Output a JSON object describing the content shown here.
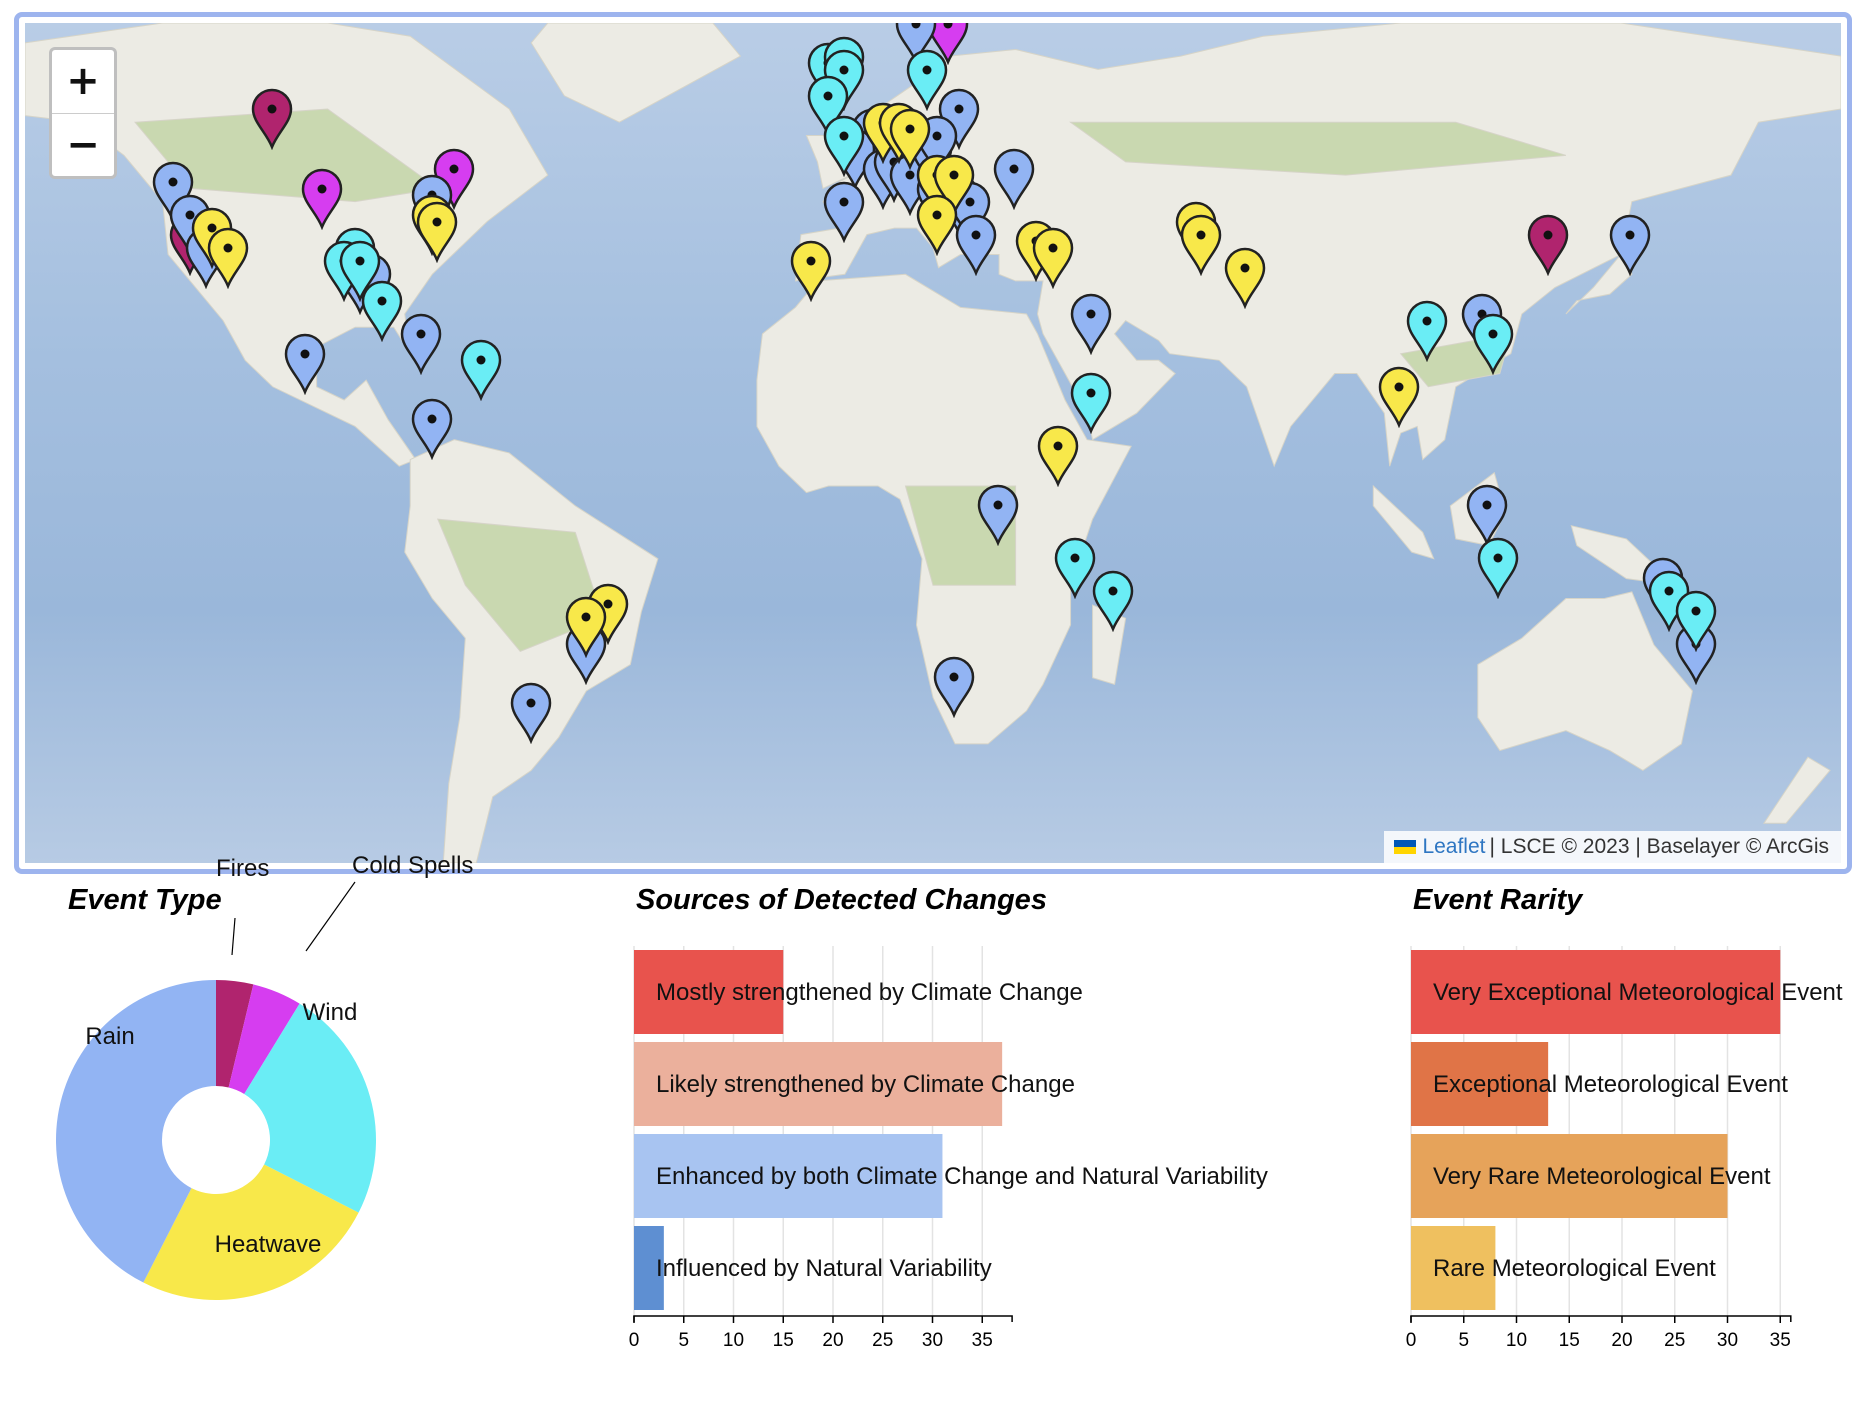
{
  "map": {
    "zoom_in": "+",
    "zoom_out": "−",
    "attribution": {
      "link": "Leaflet",
      "rest": "| LSCE © 2023 | Baselayer © ArcGis",
      "flag_colors": [
        "#0057b7",
        "#ffd500"
      ]
    },
    "colors": {
      "fires": "#b0246e",
      "cold_spells": "#d63df0",
      "wind": "#6aedf5",
      "heatwave": "#f8e84a",
      "rain": "#92b4f3",
      "land": "#ecebe4",
      "vegetation": "#c9d8b0",
      "ocean": "#a6c0e0"
    },
    "markers": [
      {
        "type": "fires",
        "lon": -105,
        "lat": 56
      },
      {
        "type": "fires",
        "lon": -120,
        "lat": 37
      },
      {
        "type": "fires",
        "lon": 127,
        "lat": 37
      },
      {
        "type": "cold_spells",
        "lon": -96,
        "lat": 44
      },
      {
        "type": "cold_spells",
        "lon": -72,
        "lat": 47
      },
      {
        "type": "cold_spells",
        "lon": 18,
        "lat": 69
      },
      {
        "type": "cold_spells",
        "lon": 12,
        "lat": 51
      },
      {
        "type": "rain",
        "lon": -123,
        "lat": 45
      },
      {
        "type": "rain",
        "lon": -120,
        "lat": 40
      },
      {
        "type": "rain",
        "lon": -117,
        "lat": 35
      },
      {
        "type": "rain",
        "lon": -89,
        "lat": 31
      },
      {
        "type": "rain",
        "lon": -87,
        "lat": 31
      },
      {
        "type": "rain",
        "lon": -76,
        "lat": 43
      },
      {
        "type": "rain",
        "lon": -99,
        "lat": 19
      },
      {
        "type": "rain",
        "lon": -78,
        "lat": 22
      },
      {
        "type": "rain",
        "lon": -76,
        "lat": 9
      },
      {
        "type": "rain",
        "lon": -48,
        "lat": -25
      },
      {
        "type": "rain",
        "lon": -58,
        "lat": -34
      },
      {
        "type": "rain",
        "lon": 12,
        "lat": 69
      },
      {
        "type": "rain",
        "lon": 20,
        "lat": 56
      },
      {
        "type": "rain",
        "lon": 4,
        "lat": 53
      },
      {
        "type": "rain",
        "lon": 1,
        "lat": 50
      },
      {
        "type": "rain",
        "lon": 6,
        "lat": 47
      },
      {
        "type": "rain",
        "lon": 8,
        "lat": 48
      },
      {
        "type": "rain",
        "lon": 11,
        "lat": 46
      },
      {
        "type": "rain",
        "lon": 15,
        "lat": 50
      },
      {
        "type": "rain",
        "lon": 16,
        "lat": 52
      },
      {
        "type": "rain",
        "lon": 16,
        "lat": 44
      },
      {
        "type": "rain",
        "lon": 18,
        "lat": 43
      },
      {
        "type": "rain",
        "lon": 20,
        "lat": 43
      },
      {
        "type": "rain",
        "lon": 22,
        "lat": 42
      },
      {
        "type": "rain",
        "lon": 23,
        "lat": 37
      },
      {
        "type": "rain",
        "lon": 30,
        "lat": 47
      },
      {
        "type": "rain",
        "lon": -1,
        "lat": 42
      },
      {
        "type": "rain",
        "lon": 44,
        "lat": 25
      },
      {
        "type": "rain",
        "lon": 27,
        "lat": -4
      },
      {
        "type": "rain",
        "lon": 19,
        "lat": -30
      },
      {
        "type": "rain",
        "lon": 115,
        "lat": 25
      },
      {
        "type": "rain",
        "lon": 116,
        "lat": -4
      },
      {
        "type": "rain",
        "lon": 142,
        "lat": 37
      },
      {
        "type": "rain",
        "lon": 148,
        "lat": -15
      },
      {
        "type": "rain",
        "lon": 154,
        "lat": -25
      },
      {
        "type": "wind",
        "lon": -90,
        "lat": 35
      },
      {
        "type": "wind",
        "lon": -92,
        "lat": 33
      },
      {
        "type": "wind",
        "lon": -89,
        "lat": 33
      },
      {
        "type": "wind",
        "lon": -85,
        "lat": 27
      },
      {
        "type": "wind",
        "lon": -67,
        "lat": 18
      },
      {
        "type": "wind",
        "lon": -4,
        "lat": 63
      },
      {
        "type": "wind",
        "lon": -1,
        "lat": 64
      },
      {
        "type": "wind",
        "lon": -1,
        "lat": 62
      },
      {
        "type": "wind",
        "lon": -4,
        "lat": 58
      },
      {
        "type": "wind",
        "lon": -1,
        "lat": 52
      },
      {
        "type": "wind",
        "lon": 14,
        "lat": 62
      },
      {
        "type": "wind",
        "lon": 44,
        "lat": 13
      },
      {
        "type": "wind",
        "lon": 41,
        "lat": -12
      },
      {
        "type": "wind",
        "lon": 48,
        "lat": -17
      },
      {
        "type": "wind",
        "lon": 105,
        "lat": 24
      },
      {
        "type": "wind",
        "lon": 117,
        "lat": 22
      },
      {
        "type": "wind",
        "lon": 118,
        "lat": -12
      },
      {
        "type": "wind",
        "lon": 149,
        "lat": -17
      },
      {
        "type": "wind",
        "lon": 154,
        "lat": -20
      },
      {
        "type": "heatwave",
        "lon": -116,
        "lat": 38
      },
      {
        "type": "heatwave",
        "lon": -113,
        "lat": 35
      },
      {
        "type": "heatwave",
        "lon": -76,
        "lat": 40
      },
      {
        "type": "heatwave",
        "lon": -75,
        "lat": 39
      },
      {
        "type": "heatwave",
        "lon": 6,
        "lat": 54
      },
      {
        "type": "heatwave",
        "lon": 9,
        "lat": 54
      },
      {
        "type": "heatwave",
        "lon": 11,
        "lat": 53
      },
      {
        "type": "heatwave",
        "lon": 16,
        "lat": 46
      },
      {
        "type": "heatwave",
        "lon": 19,
        "lat": 46
      },
      {
        "type": "heatwave",
        "lon": 16,
        "lat": 40
      },
      {
        "type": "heatwave",
        "lon": -7,
        "lat": 33
      },
      {
        "type": "heatwave",
        "lon": 34,
        "lat": 36
      },
      {
        "type": "heatwave",
        "lon": 37,
        "lat": 35
      },
      {
        "type": "heatwave",
        "lon": 63,
        "lat": 39
      },
      {
        "type": "heatwave",
        "lon": 64,
        "lat": 37
      },
      {
        "type": "heatwave",
        "lon": 72,
        "lat": 32
      },
      {
        "type": "heatwave",
        "lon": 100,
        "lat": 14
      },
      {
        "type": "heatwave",
        "lon": 38,
        "lat": 5
      },
      {
        "type": "heatwave",
        "lon": -44,
        "lat": -19
      },
      {
        "type": "heatwave",
        "lon": -48,
        "lat": -21
      }
    ]
  },
  "event_type": {
    "title": "Event Type",
    "slices": [
      {
        "label": "Fires",
        "value": 3,
        "color": "#b0246e"
      },
      {
        "label": "Cold Spells",
        "value": 4,
        "color": "#d63df0"
      },
      {
        "label": "Wind",
        "value": 19,
        "color": "#6aedf5"
      },
      {
        "label": "Heatwave",
        "value": 20,
        "color": "#f8e84a"
      },
      {
        "label": "Rain",
        "value": 34,
        "color": "#92b4f3"
      }
    ]
  },
  "chart_data": [
    {
      "type": "pie",
      "title": "Event Type",
      "categories": [
        "Fires",
        "Cold Spells",
        "Wind",
        "Heatwave",
        "Rain"
      ],
      "values": [
        3,
        4,
        19,
        20,
        34
      ]
    },
    {
      "type": "bar",
      "orientation": "horizontal",
      "title": "Sources of Detected Changes",
      "categories": [
        "Mostly strengthened by Climate Change",
        "Likely strengthened by Climate Change",
        "Enhanced by both Climate Change and Natural Variability",
        "Influenced by Natural Variability"
      ],
      "values": [
        15,
        37,
        31,
        3
      ],
      "colors": [
        "#e8534d",
        "#ebb09c",
        "#a8c4f1",
        "#5e8fd2"
      ],
      "xlim": [
        0,
        38
      ],
      "ticks": [
        0,
        5,
        10,
        15,
        20,
        25,
        30,
        35
      ],
      "grid": true
    },
    {
      "type": "bar",
      "orientation": "horizontal",
      "title": "Event Rarity",
      "categories": [
        "Very Exceptional Meteorological Event",
        "Exceptional Meteorological Event",
        "Very Rare Meteorological Event",
        "Rare Meteorological Event"
      ],
      "values": [
        35,
        13,
        30,
        8
      ],
      "colors": [
        "#e8534d",
        "#e07447",
        "#e6a35a",
        "#efc05f"
      ],
      "xlim": [
        0,
        36
      ],
      "ticks": [
        0,
        5,
        10,
        15,
        20,
        25,
        30,
        35
      ],
      "grid": true
    }
  ]
}
